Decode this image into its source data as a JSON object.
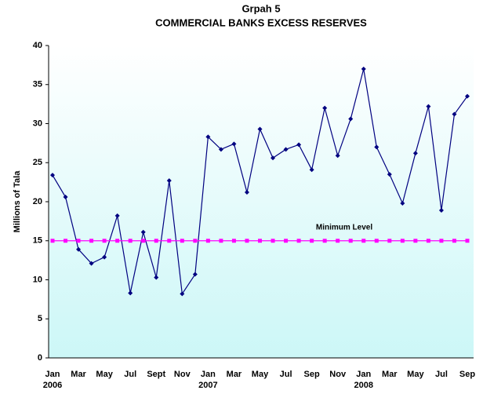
{
  "chart_data": {
    "type": "line",
    "title": "Grpah 5",
    "subtitle": "COMMERCIAL BANKS EXCESS RESERVES",
    "y_label": "Millions of Tala",
    "categories": [
      "Jan",
      null,
      "Mar",
      null,
      "May",
      null,
      "Jul",
      null,
      "Sept",
      null,
      "Nov",
      null,
      "Jan",
      null,
      "Mar",
      null,
      "May",
      null,
      "Jul",
      null,
      "Sep",
      null,
      "Nov",
      null,
      "Jan",
      null,
      "Mar",
      null,
      "May",
      null,
      "Jul",
      null,
      "Sep"
    ],
    "years": [
      "2006",
      null,
      null,
      null,
      null,
      null,
      null,
      null,
      null,
      null,
      null,
      null,
      "2007",
      null,
      null,
      null,
      null,
      null,
      null,
      null,
      null,
      null,
      null,
      null,
      "2008",
      null,
      null,
      null,
      null,
      null,
      null,
      null,
      null
    ],
    "series": [
      {
        "color": "#000080",
        "values": [
          23.4,
          20.6,
          13.9,
          12.1,
          12.9,
          18.2,
          8.3,
          16.1,
          10.3,
          22.7,
          8.2,
          10.7,
          28.3,
          26.7,
          27.4,
          21.2,
          29.3,
          25.6,
          26.7,
          27.3,
          24.1,
          32.0,
          25.9,
          30.6,
          37.0,
          27.0,
          23.5,
          19.8,
          26.2,
          32.2,
          18.9,
          31.2,
          33.5
        ]
      },
      {
        "name": "Minimum Level",
        "color": "#ff00ff",
        "values": [
          15,
          15,
          15,
          15,
          15,
          15,
          15,
          15,
          15,
          15,
          15,
          15,
          15,
          15,
          15,
          15,
          15,
          15,
          15,
          15,
          15,
          15,
          15,
          15,
          15,
          15,
          15,
          15,
          15,
          15,
          15,
          15,
          15
        ]
      }
    ],
    "ylim": [
      0,
      40
    ],
    "yticks": [
      0,
      5,
      10,
      15,
      20,
      25,
      30,
      35,
      40
    ],
    "grid": false
  }
}
